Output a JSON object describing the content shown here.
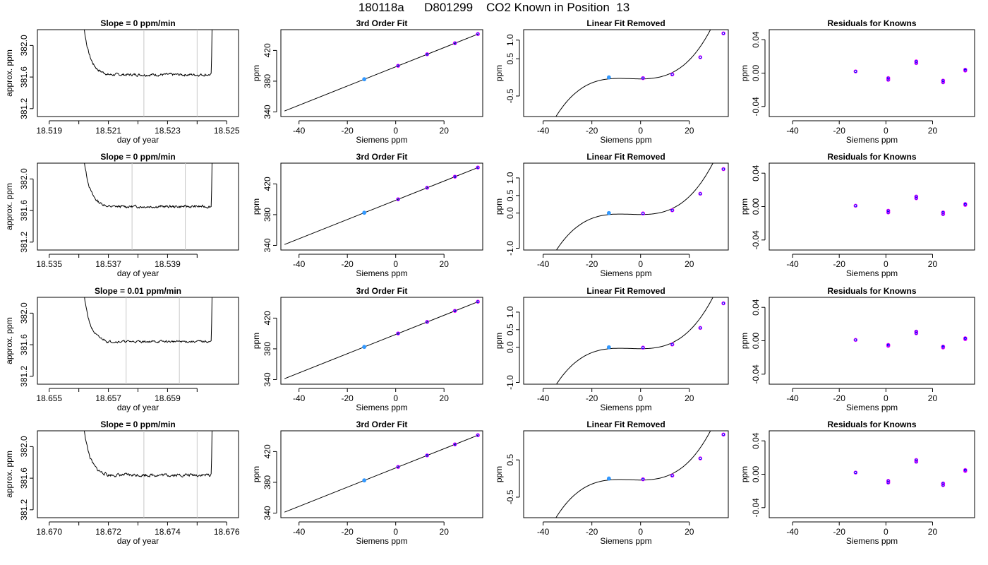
{
  "page_title": "180118a      D801299    CO2 Known in Position  13",
  "colors": {
    "curve": "#000000",
    "vline": "#c8c8c8",
    "point_outer": "#ff00ff",
    "point_inner": "#0000ff",
    "ref_point": "#3399ff"
  },
  "chart_data": [
    {
      "id": "r1c1",
      "type": "line",
      "title": "Slope =  0  ppm/min",
      "xlabel": "day of year",
      "ylabel": "approx. ppm",
      "xlim": [
        18.5186,
        18.5254
      ],
      "ylim": [
        381.1,
        382.2
      ],
      "xticks": [
        "18.519",
        "18.520",
        "18.521",
        "18.522",
        "18.523",
        "18.524",
        "18.525"
      ],
      "xtick_labels": [
        "18.519",
        "",
        "18.521",
        "",
        "18.523",
        "",
        "18.525"
      ],
      "yticks": [
        "381.2",
        "381.6",
        "382.0"
      ],
      "vlines": [
        18.5222,
        18.524
      ],
      "trace": {
        "x_start": 18.5199,
        "x_end": 18.5246,
        "plateau": 381.63,
        "noise": 0.012,
        "seed": 7
      }
    },
    {
      "id": "r1c2",
      "type": "line",
      "title": "3rd Order Fit",
      "xlabel": "Siemens ppm",
      "ylabel": "ppm",
      "xlim": [
        -47.5,
        36
      ],
      "ylim": [
        334,
        447
      ],
      "xticks": [
        "-40",
        "-20",
        "0",
        "20"
      ],
      "yticks": [
        "340",
        "380",
        "420"
      ],
      "line": {
        "x": [
          -46,
          34
        ],
        "y": [
          341.2,
          441.2
        ]
      },
      "points": [
        {
          "x": -13,
          "y": 382.5,
          "ref": true
        },
        {
          "x": 1,
          "y": 400.0
        },
        {
          "x": 13,
          "y": 415.0
        },
        {
          "x": 24.5,
          "y": 429.4
        },
        {
          "x": 34,
          "y": 441.3
        }
      ]
    },
    {
      "id": "r1c3",
      "type": "line",
      "title": "Linear Fit Removed",
      "xlabel": "Siemens ppm",
      "ylabel": "ppm",
      "xlim": [
        -48,
        36
      ],
      "ylim": [
        -1.05,
        1.28
      ],
      "xticks": [
        "-40",
        "-20",
        "0",
        "20"
      ],
      "yticks": [
        "-0.5",
        "0.5",
        "1.0"
      ],
      "curve": {
        "a": 0.0,
        "b": 0.0,
        "c": 0.0005,
        "d": 3.85e-05
      },
      "points": [
        {
          "x": -13,
          "y": -0.0,
          "ref": true
        },
        {
          "x": 1,
          "y": -0.02
        },
        {
          "x": 13,
          "y": 0.08
        },
        {
          "x": 24.5,
          "y": 0.54
        },
        {
          "x": 34,
          "y": 1.18
        }
      ]
    },
    {
      "id": "r1c4",
      "type": "scatter",
      "title": "Residuals for Knowns",
      "xlabel": "Siemens ppm",
      "ylabel": "ppm",
      "xlim": [
        -50,
        38
      ],
      "ylim": [
        -0.052,
        0.052
      ],
      "xticks": [
        "-40",
        "-20",
        "0",
        "20"
      ],
      "yticks": [
        "-0.04",
        "0.00",
        "0.04"
      ],
      "points": [
        {
          "x": -13,
          "y": 0.002
        },
        {
          "x": 1,
          "y": -0.008
        },
        {
          "x": 1,
          "y": -0.006
        },
        {
          "x": 13,
          "y": 0.012
        },
        {
          "x": 13,
          "y": 0.014
        },
        {
          "x": 24.5,
          "y": -0.011
        },
        {
          "x": 24.5,
          "y": -0.009
        },
        {
          "x": 34,
          "y": 0.003
        },
        {
          "x": 34,
          "y": 0.004
        }
      ]
    },
    {
      "id": "r2c1",
      "type": "line",
      "title": "Slope =  0  ppm/min",
      "xlabel": "day of year",
      "ylabel": "approx. ppm",
      "xlim": [
        18.5346,
        18.5414
      ],
      "ylim": [
        381.1,
        382.2
      ],
      "xticks": [
        "18.535",
        "18.536",
        "18.537",
        "18.538",
        "18.539",
        "18.540"
      ],
      "xtick_labels": [
        "18.535",
        "",
        "18.537",
        "",
        "18.539",
        ""
      ],
      "yticks": [
        "381.2",
        "381.6",
        "382.0"
      ],
      "vlines": [
        18.5378,
        18.5396
      ],
      "trace": {
        "x_start": 18.5359,
        "x_end": 18.5406,
        "plateau": 381.65,
        "noise": 0.012,
        "seed": 13
      }
    },
    {
      "id": "r2c2",
      "type": "line",
      "title": "3rd Order Fit",
      "xlabel": "Siemens ppm",
      "ylabel": "ppm",
      "xlim": [
        -47.5,
        36
      ],
      "ylim": [
        334,
        447
      ],
      "xticks": [
        "-40",
        "-20",
        "0",
        "20"
      ],
      "yticks": [
        "340",
        "380",
        "420"
      ],
      "line": {
        "x": [
          -46,
          34
        ],
        "y": [
          341.2,
          441.2
        ]
      },
      "points": [
        {
          "x": -13,
          "y": 382.5,
          "ref": true
        },
        {
          "x": 1,
          "y": 400.0
        },
        {
          "x": 13,
          "y": 415.0
        },
        {
          "x": 24.5,
          "y": 429.4
        },
        {
          "x": 34,
          "y": 441.3
        }
      ]
    },
    {
      "id": "r2c3",
      "type": "line",
      "title": "Linear Fit Removed",
      "xlabel": "Siemens ppm",
      "ylabel": "ppm",
      "xlim": [
        -48,
        36
      ],
      "ylim": [
        -1.05,
        1.42
      ],
      "xticks": [
        "-40",
        "-20",
        "0",
        "20"
      ],
      "yticks": [
        "-1.0",
        "0.0",
        "0.5",
        "1.0"
      ],
      "curve": {
        "a": 0.0,
        "b": 0.0,
        "c": 0.0005,
        "d": 3.9e-05
      },
      "points": [
        {
          "x": -13,
          "y": 0.0,
          "ref": true
        },
        {
          "x": 1,
          "y": -0.01
        },
        {
          "x": 13,
          "y": 0.08
        },
        {
          "x": 24.5,
          "y": 0.55
        },
        {
          "x": 34,
          "y": 1.25
        }
      ]
    },
    {
      "id": "r2c4",
      "type": "scatter",
      "title": "Residuals for Knowns",
      "xlabel": "Siemens ppm",
      "ylabel": "ppm",
      "xlim": [
        -50,
        38
      ],
      "ylim": [
        -0.052,
        0.052
      ],
      "xticks": [
        "-40",
        "-20",
        "0",
        "20"
      ],
      "yticks": [
        "-0.04",
        "0.00",
        "0.04"
      ],
      "points": [
        {
          "x": -13,
          "y": 0.001
        },
        {
          "x": 1,
          "y": -0.007
        },
        {
          "x": 1,
          "y": -0.005
        },
        {
          "x": 13,
          "y": 0.01
        },
        {
          "x": 13,
          "y": 0.012
        },
        {
          "x": 24.5,
          "y": -0.009
        },
        {
          "x": 24.5,
          "y": -0.007
        },
        {
          "x": 34,
          "y": 0.002
        },
        {
          "x": 34,
          "y": 0.003
        }
      ]
    },
    {
      "id": "r3c1",
      "type": "line",
      "title": "Slope =  0.01  ppm/min",
      "xlabel": "day of year",
      "ylabel": "approx. ppm",
      "xlim": [
        18.6546,
        18.6614
      ],
      "ylim": [
        381.1,
        382.2
      ],
      "xticks": [
        "18.655",
        "18.656",
        "18.657",
        "18.658",
        "18.659",
        "18.660"
      ],
      "xtick_labels": [
        "18.655",
        "",
        "18.657",
        "",
        "18.659",
        ""
      ],
      "yticks": [
        "381.2",
        "381.6",
        "382.0"
      ],
      "vlines": [
        18.6576,
        18.6594
      ],
      "trace": {
        "x_start": 18.6559,
        "x_end": 18.6606,
        "plateau": 381.64,
        "noise": 0.01,
        "seed": 21
      }
    },
    {
      "id": "r3c2",
      "type": "line",
      "title": "3rd Order Fit",
      "xlabel": "Siemens ppm",
      "ylabel": "ppm",
      "xlim": [
        -47.5,
        36
      ],
      "ylim": [
        334,
        447
      ],
      "xticks": [
        "-40",
        "-20",
        "0",
        "20"
      ],
      "yticks": [
        "340",
        "380",
        "420"
      ],
      "line": {
        "x": [
          -46,
          34
        ],
        "y": [
          341.2,
          441.2
        ]
      },
      "points": [
        {
          "x": -13,
          "y": 382.5,
          "ref": true
        },
        {
          "x": 1,
          "y": 400.0
        },
        {
          "x": 13,
          "y": 415.0
        },
        {
          "x": 24.5,
          "y": 429.4
        },
        {
          "x": 34,
          "y": 441.3
        }
      ]
    },
    {
      "id": "r3c3",
      "type": "line",
      "title": "Linear Fit Removed",
      "xlabel": "Siemens ppm",
      "ylabel": "ppm",
      "xlim": [
        -48,
        36
      ],
      "ylim": [
        -1.05,
        1.42
      ],
      "xticks": [
        "-40",
        "-20",
        "0",
        "20"
      ],
      "yticks": [
        "-1.0",
        "0.0",
        "0.5",
        "1.0"
      ],
      "curve": {
        "a": 0.0,
        "b": 0.0,
        "c": 0.0005,
        "d": 3.9e-05
      },
      "points": [
        {
          "x": -13,
          "y": 0.0,
          "ref": true
        },
        {
          "x": 1,
          "y": -0.01
        },
        {
          "x": 13,
          "y": 0.08
        },
        {
          "x": 24.5,
          "y": 0.55
        },
        {
          "x": 34,
          "y": 1.25
        }
      ]
    },
    {
      "id": "r3c4",
      "type": "scatter",
      "title": "Residuals for Knowns",
      "xlabel": "Siemens ppm",
      "ylabel": "ppm",
      "xlim": [
        -50,
        38
      ],
      "ylim": [
        -0.052,
        0.052
      ],
      "xticks": [
        "-40",
        "-20",
        "0",
        "20"
      ],
      "yticks": [
        "-0.04",
        "0.00",
        "0.04"
      ],
      "points": [
        {
          "x": -13,
          "y": 0.001
        },
        {
          "x": 1,
          "y": -0.006
        },
        {
          "x": 1,
          "y": -0.005
        },
        {
          "x": 13,
          "y": 0.009
        },
        {
          "x": 13,
          "y": 0.011
        },
        {
          "x": 24.5,
          "y": -0.008
        },
        {
          "x": 24.5,
          "y": -0.007
        },
        {
          "x": 34,
          "y": 0.002
        },
        {
          "x": 34,
          "y": 0.003
        }
      ]
    },
    {
      "id": "r4c1",
      "type": "line",
      "title": "Slope =  0  ppm/min",
      "xlabel": "day of year",
      "ylabel": "approx. ppm",
      "xlim": [
        18.6696,
        18.6764
      ],
      "ylim": [
        381.1,
        382.2
      ],
      "xticks": [
        "18.670",
        "18.671",
        "18.672",
        "18.673",
        "18.674",
        "18.675",
        "18.676"
      ],
      "xtick_labels": [
        "18.670",
        "",
        "18.672",
        "",
        "18.674",
        "",
        "18.676"
      ],
      "yticks": [
        "381.2",
        "381.6",
        "382.0"
      ],
      "vlines": [
        18.6732,
        18.675
      ],
      "trace": {
        "x_start": 18.6709,
        "x_end": 18.6756,
        "plateau": 381.64,
        "noise": 0.014,
        "seed": 33
      }
    },
    {
      "id": "r4c2",
      "type": "line",
      "title": "3rd Order Fit",
      "xlabel": "Siemens ppm",
      "ylabel": "ppm",
      "xlim": [
        -47.5,
        36
      ],
      "ylim": [
        334,
        447
      ],
      "xticks": [
        "-40",
        "-20",
        "0",
        "20"
      ],
      "yticks": [
        "340",
        "380",
        "420"
      ],
      "line": {
        "x": [
          -46,
          34
        ],
        "y": [
          341.2,
          441.2
        ]
      },
      "points": [
        {
          "x": -13,
          "y": 382.5,
          "ref": true
        },
        {
          "x": 1,
          "y": 400.0
        },
        {
          "x": 13,
          "y": 415.0
        },
        {
          "x": 24.5,
          "y": 429.4
        },
        {
          "x": 34,
          "y": 441.3
        }
      ]
    },
    {
      "id": "r4c3",
      "type": "line",
      "title": "Linear Fit Removed",
      "xlabel": "Siemens ppm",
      "ylabel": "ppm",
      "xlim": [
        -48,
        36
      ],
      "ylim": [
        -1.05,
        1.28
      ],
      "xticks": [
        "-40",
        "-20",
        "0",
        "20"
      ],
      "yticks": [
        "-0.5",
        "0.5"
      ],
      "curve": {
        "a": 0.0,
        "b": 0.0,
        "c": 0.0005,
        "d": 3.85e-05
      },
      "points": [
        {
          "x": -13,
          "y": 0.0,
          "ref": true
        },
        {
          "x": 1,
          "y": -0.02
        },
        {
          "x": 13,
          "y": 0.08
        },
        {
          "x": 24.5,
          "y": 0.54
        },
        {
          "x": 34,
          "y": 1.18
        }
      ]
    },
    {
      "id": "r4c4",
      "type": "scatter",
      "title": "Residuals for Knowns",
      "xlabel": "Siemens ppm",
      "ylabel": "ppm",
      "xlim": [
        -50,
        38
      ],
      "ylim": [
        -0.052,
        0.052
      ],
      "xticks": [
        "-40",
        "-20",
        "0",
        "20"
      ],
      "yticks": [
        "-0.04",
        "0.00",
        "0.04"
      ],
      "points": [
        {
          "x": -13,
          "y": 0.002
        },
        {
          "x": 1,
          "y": -0.01
        },
        {
          "x": 1,
          "y": -0.008
        },
        {
          "x": 13,
          "y": 0.015
        },
        {
          "x": 13,
          "y": 0.017
        },
        {
          "x": 24.5,
          "y": -0.013
        },
        {
          "x": 24.5,
          "y": -0.011
        },
        {
          "x": 34,
          "y": 0.004
        },
        {
          "x": 34,
          "y": 0.005
        }
      ]
    }
  ]
}
